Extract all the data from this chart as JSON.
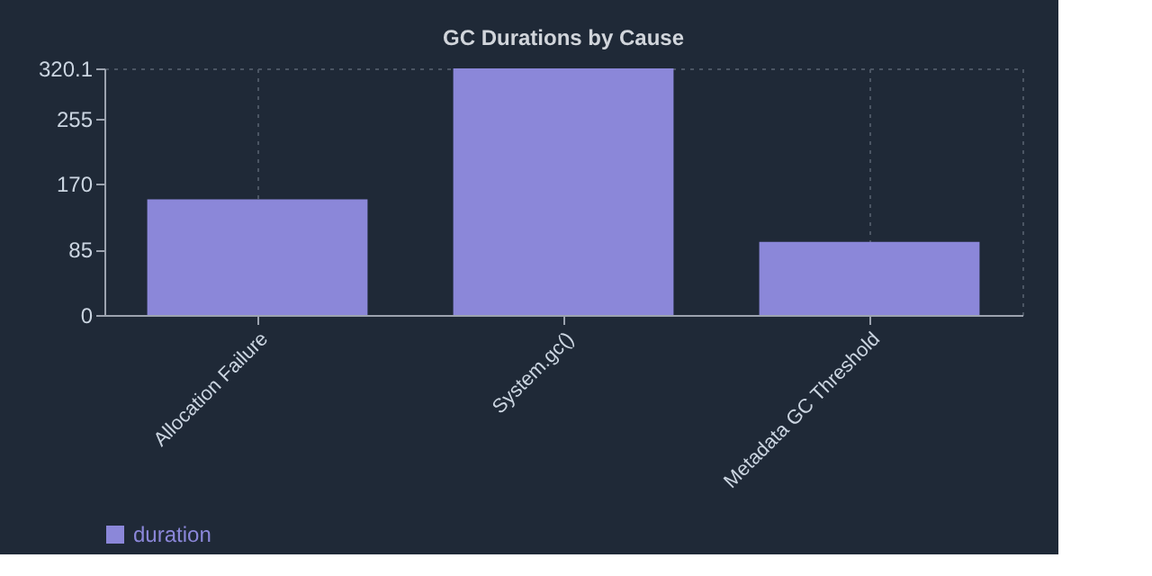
{
  "chart_data": {
    "type": "bar",
    "title": "GC Durations by Cause",
    "categories": [
      "Allocation Failure",
      "System.gc()",
      "Metadata GC Threshold"
    ],
    "series": [
      {
        "name": "duration",
        "color": "#8b87d9",
        "values": [
          150,
          320.1,
          95
        ]
      }
    ],
    "ylim": [
      0,
      320.1
    ],
    "yticks": [
      0,
      85,
      170,
      255,
      320.1
    ],
    "grid": "x",
    "legend": "bottom"
  }
}
